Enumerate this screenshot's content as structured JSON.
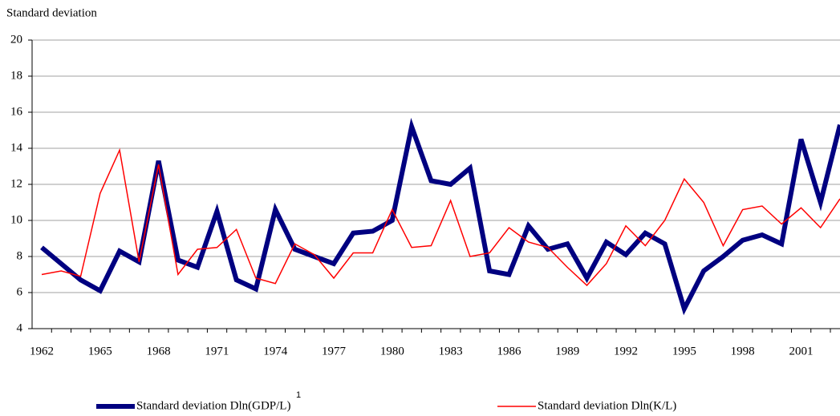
{
  "chart_data": {
    "type": "line",
    "y_axis_label": "Standard deviation",
    "categories": [
      "1962",
      null,
      null,
      "1965",
      null,
      null,
      "1968",
      null,
      null,
      "1971",
      null,
      null,
      "1974",
      null,
      null,
      "1977",
      null,
      null,
      "1980",
      null,
      null,
      "1983",
      null,
      null,
      "1986",
      null,
      null,
      "1989",
      null,
      null,
      "1992",
      null,
      null,
      "1995",
      null,
      null,
      "1998",
      null,
      null,
      "2001",
      null,
      null
    ],
    "series": [
      {
        "name": "Standard deviation Dln(GDP/L)",
        "footnote": "1",
        "color": "#000080",
        "values": [
          8.5,
          7.6,
          6.7,
          6.1,
          8.3,
          7.7,
          13.3,
          7.8,
          7.4,
          10.5,
          6.7,
          6.2,
          10.6,
          8.4,
          8.0,
          7.6,
          9.3,
          9.4,
          10.0,
          15.2,
          12.2,
          12.0,
          12.9,
          7.2,
          7.0,
          9.7,
          8.4,
          8.7,
          6.8,
          8.8,
          8.1,
          9.3,
          8.7,
          5.1,
          7.2,
          8.0,
          8.9,
          9.2,
          8.7,
          14.5,
          11.0,
          15.3
        ]
      },
      {
        "name": "Standard deviation Dln(K/L)",
        "color": "#ff0000",
        "values": [
          7.0,
          7.2,
          6.9,
          11.5,
          13.9,
          7.7,
          13.1,
          7.0,
          8.4,
          8.5,
          9.5,
          6.8,
          6.5,
          8.7,
          8.1,
          6.8,
          8.2,
          8.2,
          10.6,
          8.5,
          8.6,
          11.1,
          8.0,
          8.2,
          9.6,
          8.8,
          8.5,
          7.4,
          6.4,
          7.6,
          9.7,
          8.6,
          10.0,
          12.3,
          11.0,
          8.6,
          10.6,
          10.8,
          9.8,
          10.7,
          9.6,
          11.2
        ]
      }
    ],
    "ylim": [
      4,
      20
    ],
    "yticks": [
      4,
      6,
      8,
      10,
      12,
      14,
      16,
      18,
      20
    ],
    "grid": true
  }
}
